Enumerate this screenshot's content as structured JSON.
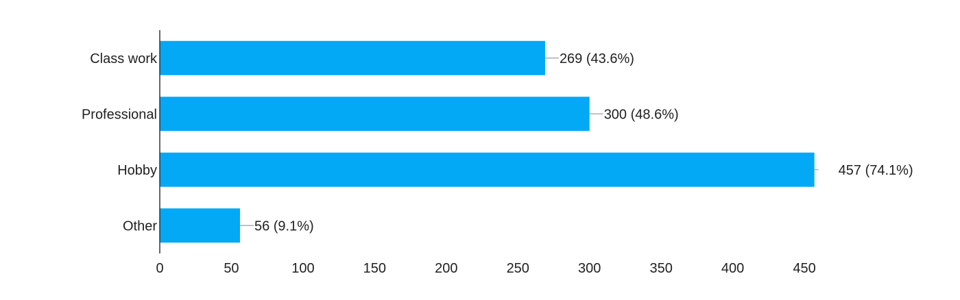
{
  "chart_data": {
    "type": "bar",
    "orientation": "horizontal",
    "categories": [
      "Class work",
      "Professional",
      "Hobby",
      "Other"
    ],
    "values": [
      269,
      300,
      457,
      56
    ],
    "data_labels": [
      "269 (43.6%)",
      "300 (48.6%)",
      "457 (74.1%)",
      "56 (9.1%)"
    ],
    "x_ticks": [
      0,
      50,
      100,
      150,
      200,
      250,
      300,
      350,
      400,
      450
    ],
    "xlim": [
      0,
      457
    ],
    "grid": false,
    "bar_color": "#03a9f4",
    "axis_color": "#333333",
    "leader_color": "#9e9e9e"
  }
}
